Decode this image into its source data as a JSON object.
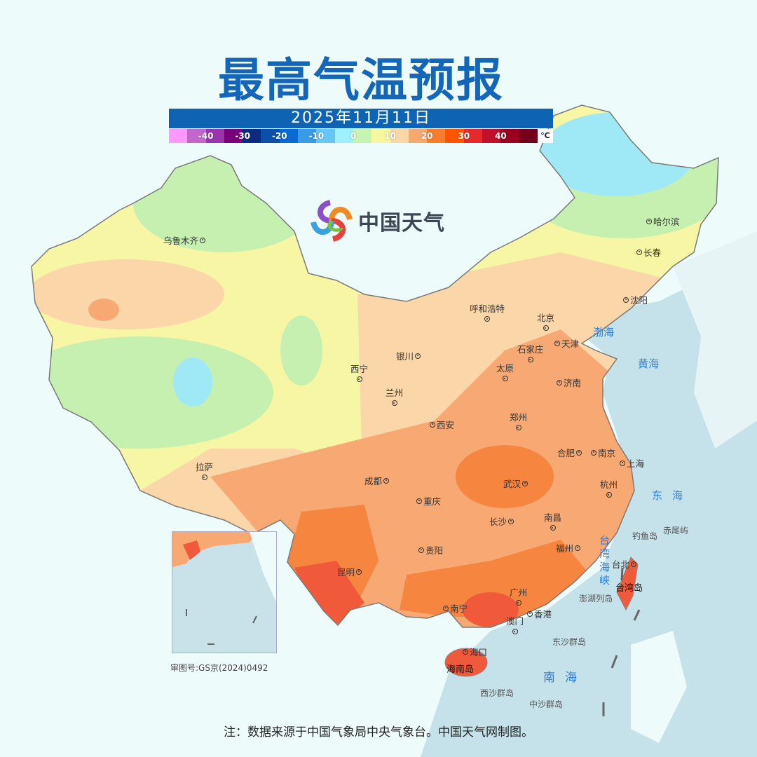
{
  "header": {
    "title": "最高气温预报",
    "date": "2025年11月11日"
  },
  "legend": {
    "colors": [
      "#ff99ff",
      "#c266cc",
      "#9a35ad",
      "#7a0077",
      "#0c2a80",
      "#0b4fa8",
      "#0a6ad4",
      "#3a9ae6",
      "#66c7f5",
      "#9cf0ff",
      "#c6f4b2",
      "#f7f79e",
      "#fbd7a6",
      "#f8a86c",
      "#f77c2c",
      "#ff5500",
      "#e62a2a",
      "#c0102a",
      "#9a001e",
      "#75001a"
    ],
    "labels": [
      "-40",
      "-30",
      "-20",
      "-10",
      "0",
      "10",
      "20",
      "30",
      "40"
    ],
    "unit": "℃"
  },
  "brand": {
    "name": "中国天气",
    "icon": "china-weather-swirl-logo"
  },
  "zone_colors": {
    "cool": "#c6f0b0",
    "cold": "#9fe9f7",
    "mild": "#f7f6a4",
    "warm": "#fad6a8",
    "hot": "#f8a872",
    "hotter": "#f5853f",
    "hottest": "#f0593a"
  },
  "cities": {
    "urumqi": "乌鲁木齐",
    "harbin": "哈尔滨",
    "changchun": "长春",
    "shenyang": "沈阳",
    "hohhot": "呼和浩特",
    "beijing": "北京",
    "tianjin": "天津",
    "shijiazhuang": "石家庄",
    "taiyuan": "太原",
    "jinan": "济南",
    "yinchuan": "银川",
    "xining": "西宁",
    "lanzhou": "兰州",
    "zhengzhou": "郑州",
    "xian": "西安",
    "hefei": "合肥",
    "nanjing": "南京",
    "shanghai": "上海",
    "lhasa": "拉萨",
    "chengdu": "成都",
    "wuhan": "武汉",
    "hangzhou": "杭州",
    "chongqing": "重庆",
    "nanchang": "南昌",
    "changsha": "长沙",
    "fuzhou": "福州",
    "guiyang": "贵阳",
    "taipei": "台北",
    "kunming": "昆明",
    "guangzhou": "广州",
    "nanning": "南宁",
    "hongkong": "香港",
    "macau": "澳门",
    "haikou": "海口"
  },
  "seas": {
    "bohai": "渤海",
    "yellow": "黄海",
    "east": "东海",
    "south": "南海",
    "strait": "台湾海峡"
  },
  "islands": {
    "diaoyu": "钓鱼岛",
    "chiwei": "赤尾屿",
    "penghu": "澎湖列岛",
    "dongsha": "东沙群岛",
    "xisha": "西沙群岛",
    "zhongsha": "中沙群岛",
    "taiwan": "台湾岛",
    "hainan": "海南岛"
  },
  "approval_number": "审图号:GS京(2024)0492",
  "footer_note": "注：数据来源于中国气象局中央气象台。中国天气网制图。"
}
